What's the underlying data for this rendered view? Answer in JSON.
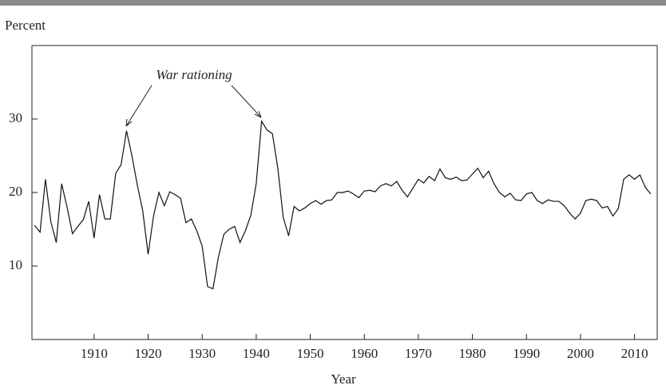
{
  "chart_data": {
    "type": "line",
    "y_label": "Percent",
    "x_label": "Year",
    "annotation": "War rationing",
    "x": [
      1899,
      1900,
      1901,
      1902,
      1903,
      1904,
      1905,
      1906,
      1907,
      1908,
      1909,
      1910,
      1911,
      1912,
      1913,
      1914,
      1915,
      1916,
      1917,
      1918,
      1919,
      1920,
      1921,
      1922,
      1923,
      1924,
      1925,
      1926,
      1927,
      1928,
      1929,
      1930,
      1931,
      1932,
      1933,
      1934,
      1935,
      1936,
      1937,
      1938,
      1939,
      1940,
      1941,
      1942,
      1943,
      1944,
      1945,
      1946,
      1947,
      1948,
      1949,
      1950,
      1951,
      1952,
      1953,
      1954,
      1955,
      1956,
      1957,
      1958,
      1959,
      1960,
      1961,
      1962,
      1963,
      1964,
      1965,
      1966,
      1967,
      1968,
      1969,
      1970,
      1971,
      1972,
      1973,
      1974,
      1975,
      1976,
      1977,
      1978,
      1979,
      1980,
      1981,
      1982,
      1983,
      1984,
      1985,
      1986,
      1987,
      1988,
      1989,
      1990,
      1991,
      1992,
      1993,
      1994,
      1995,
      1996,
      1997,
      1998,
      1999,
      2000,
      2001,
      2002,
      2003,
      2004,
      2005,
      2006,
      2007,
      2008,
      2009,
      2010,
      2011,
      2012,
      2013
    ],
    "values": [
      15.5,
      14.6,
      21.8,
      16,
      13.2,
      21.2,
      18,
      14.4,
      15.4,
      16.3,
      18.8,
      13.8,
      19.7,
      16.4,
      16.4,
      22.6,
      23.8,
      28.4,
      25,
      21,
      17.5,
      11.6,
      16.8,
      20,
      18.2,
      20.1,
      19.7,
      19.2,
      15.9,
      16.4,
      14.8,
      12.7,
      7.2,
      6.9,
      11.2,
      14.3,
      15,
      15.4,
      13.2,
      14.8,
      16.9,
      21.2,
      29.7,
      28.5,
      28,
      23.3,
      16.6,
      14.1,
      18.1,
      17.5,
      17.9,
      18.5,
      18.9,
      18.4,
      18.9,
      19,
      20,
      20,
      20.2,
      19.8,
      19.3,
      20.2,
      20.3,
      20.1,
      20.9,
      21.2,
      20.9,
      21.5,
      20.3,
      19.4,
      20.6,
      21.8,
      21.3,
      22.2,
      21.6,
      23.2,
      22,
      21.8,
      22.1,
      21.6,
      21.7,
      22.5,
      23.3,
      22,
      22.9,
      21.2,
      20,
      19.4,
      19.9,
      19,
      18.9,
      19.8,
      20,
      18.9,
      18.5,
      19,
      18.8,
      18.8,
      18.2,
      17.2,
      16.4,
      17.2,
      18.9,
      19.1,
      18.9,
      17.9,
      18.1,
      16.8,
      17.8,
      21.8,
      22.4,
      21.8,
      22.4,
      20.7,
      19.8
    ],
    "color": "#111111",
    "xlim": [
      1898.5,
      2014.2
    ],
    "xticks": [
      1910,
      1920,
      1930,
      1940,
      1950,
      1960,
      1970,
      1980,
      1990,
      2000,
      2010
    ],
    "ylim": [
      0,
      40
    ],
    "yticks": [
      10,
      20,
      30
    ]
  }
}
